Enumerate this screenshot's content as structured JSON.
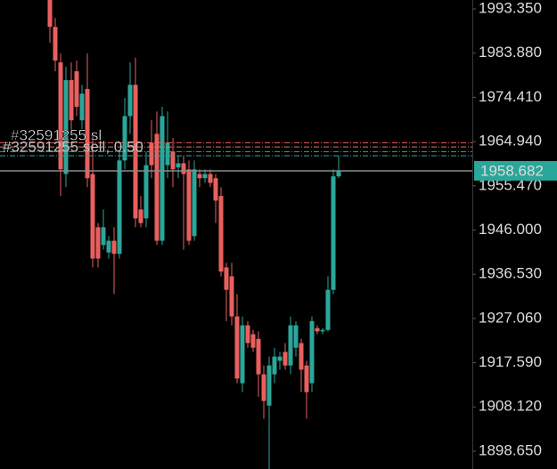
{
  "chart_data": {
    "type": "candlestick",
    "up_color": "#2ba69a",
    "down_color": "#e8605e",
    "open": [
      1995.3,
      1989.5,
      1981.9,
      1958.0,
      1978.1,
      1980.0,
      1969.5,
      1976.2,
      1958.0,
      1946.6,
      1942.8,
      1941.2,
      1943.7,
      1940.9,
      1960.9,
      1970.4,
      1977.1,
      1950.4,
      1948.5,
      1964.7,
      1966.6,
      1943.7,
      1959.9,
      1962.8,
      1959.4,
      1960.3,
      1959.0,
      1944.7,
      1958.0,
      1957.1,
      1958.0,
      1957.1,
      1953.3,
      1938.0,
      1936.1,
      1927.5,
      1913.2,
      1925.6,
      1923.7,
      1922.7,
      1915.1,
      1908.4,
      1915.1,
      1918.0,
      1919.9,
      1917.0,
      1920.8,
      1921.8,
      1917.0,
      1913.2,
      1925.0,
      1924.3,
      1924.6,
      1933.2,
      1957.5
    ],
    "high": [
      1995.3,
      1991.4,
      1983.8,
      1981.0,
      1981.9,
      1982.3,
      1977.1,
      1983.8,
      1966.6,
      1947.5,
      1950.4,
      1944.7,
      1946.6,
      1962.8,
      1974.3,
      1981.9,
      1982.9,
      1953.3,
      1962.8,
      1969.5,
      1971.4,
      1972.4,
      1971.4,
      1965.7,
      1961.9,
      1961.9,
      1960.9,
      1960.9,
      1959.0,
      1959.0,
      1959.0,
      1958.0,
      1955.2,
      1939.0,
      1939.0,
      1932.3,
      1927.5,
      1926.5,
      1924.6,
      1924.3,
      1917.0,
      1918.9,
      1920.8,
      1919.9,
      1921.8,
      1927.5,
      1926.5,
      1922.7,
      1918.0,
      1927.5,
      1925.6,
      1925.0,
      1936.1,
      1959.0,
      1961.9
    ],
    "low": [
      1986.1,
      1980.0,
      1953.3,
      1955.2,
      1966.6,
      1970.4,
      1967.6,
      1955.2,
      1938.0,
      1938.0,
      1941.8,
      1939.9,
      1932.3,
      1939.9,
      1959.0,
      1966.6,
      1946.6,
      1946.6,
      1946.6,
      1957.1,
      1942.8,
      1942.8,
      1957.1,
      1955.2,
      1957.1,
      1941.8,
      1942.8,
      1943.7,
      1955.2,
      1956.1,
      1955.2,
      1947.5,
      1936.1,
      1926.5,
      1925.6,
      1913.2,
      1911.3,
      1920.8,
      1919.9,
      1910.3,
      1905.6,
      1894.7,
      1913.2,
      1916.1,
      1916.1,
      1915.1,
      1918.9,
      1911.3,
      1905.6,
      1911.3,
      1923.7,
      1923.7,
      1924.3,
      1932.3,
      1957.1
    ],
    "close": [
      1989.5,
      1982.3,
      1959.0,
      1978.1,
      1969.5,
      1972.4,
      1975.2,
      1957.1,
      1939.9,
      1939.9,
      1946.6,
      1943.7,
      1940.9,
      1960.9,
      1970.4,
      1977.1,
      1948.5,
      1947.5,
      1959.9,
      1959.9,
      1943.7,
      1970.4,
      1964.7,
      1959.0,
      1960.3,
      1958.0,
      1943.7,
      1959.0,
      1957.1,
      1958.0,
      1956.1,
      1952.3,
      1937.1,
      1933.2,
      1927.5,
      1914.2,
      1925.6,
      1921.8,
      1920.8,
      1915.1,
      1909.4,
      1917.0,
      1918.9,
      1918.9,
      1917.0,
      1925.6,
      1925.6,
      1916.1,
      1911.3,
      1926.5,
      1924.3,
      1924.6,
      1933.2,
      1957.5,
      1958.7
    ],
    "ylim": [
      1894.83,
      1995.26
    ],
    "yticks": [
      {
        "value": 1993.35,
        "label": "1993.350"
      },
      {
        "value": 1983.88,
        "label": "1983.880"
      },
      {
        "value": 1974.41,
        "label": "1974.410"
      },
      {
        "value": 1964.94,
        "label": "1964.940"
      },
      {
        "value": 1955.47,
        "label": "1955.470"
      },
      {
        "value": 1946.0,
        "label": "1946.000"
      },
      {
        "value": 1936.53,
        "label": "1936.530"
      },
      {
        "value": 1927.06,
        "label": "1927.060"
      },
      {
        "value": 1917.59,
        "label": "1917.590"
      },
      {
        "value": 1908.12,
        "label": "1908.120"
      },
      {
        "value": 1898.65,
        "label": "1898.650"
      }
    ],
    "current_price": 1958.682,
    "current_price_color": "#2ba69a",
    "order_lines": [
      {
        "price": 1964.7,
        "color": "#e8605e"
      },
      {
        "price": 1963.8,
        "color": "#e87a50"
      },
      {
        "price": 1962.8,
        "color": "#2ba69a"
      },
      {
        "price": 1961.9,
        "color": "#2ba69a"
      }
    ],
    "annotations": [
      "#32591255 sl",
      "#32591255 sell, 0.50"
    ]
  }
}
